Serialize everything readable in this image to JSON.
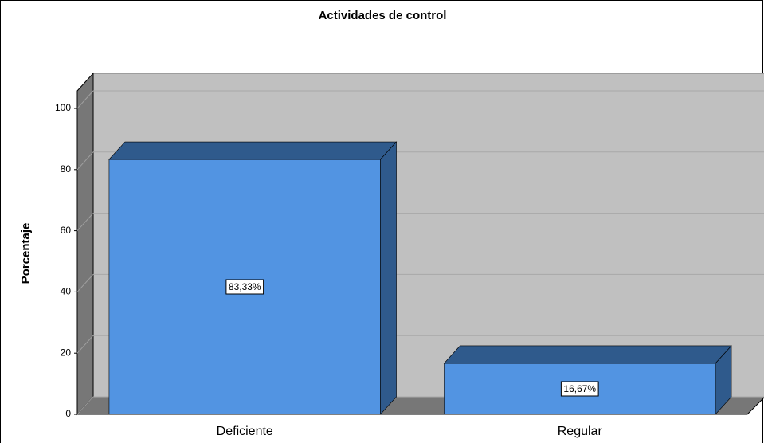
{
  "chart_data": {
    "type": "bar3d",
    "title": "Actividades de control",
    "y_label": "Porcentaje",
    "categories": [
      "Deficiente",
      "Regular"
    ],
    "values": [
      83.33,
      16.67
    ],
    "value_labels": [
      "83,33%",
      "16,67%"
    ],
    "color": "#5294e2",
    "ylim": [
      0,
      100
    ],
    "yticks": [
      0,
      20,
      40,
      60,
      80,
      100
    ],
    "grid": true
  }
}
